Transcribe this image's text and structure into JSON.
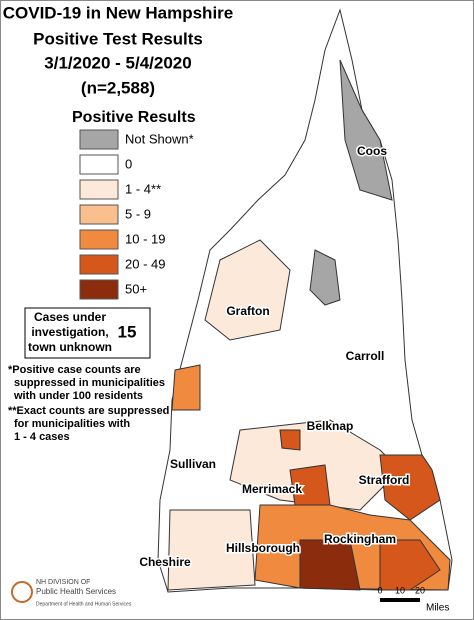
{
  "header": {
    "lines": [
      "COVID-19 in New Hampshire",
      "Positive Test Results",
      "3/1/2020 - 5/4/2020",
      "(n=2,588)"
    ]
  },
  "legend": {
    "title": "Positive Results",
    "items": [
      {
        "label": "Not Shown*",
        "color": "#a6a6a6"
      },
      {
        "label": "0",
        "color": "#ffffff"
      },
      {
        "label": "1 - 4**",
        "color": "#fde9d9"
      },
      {
        "label": "5 - 9",
        "color": "#f9c08e"
      },
      {
        "label": "10 - 19",
        "color": "#f08a3f"
      },
      {
        "label": "20 - 49",
        "color": "#d6571b"
      },
      {
        "label": "50+",
        "color": "#8b2c0c"
      }
    ]
  },
  "unknown_box": {
    "lines": [
      "Cases under",
      "investigation,",
      "town unknown"
    ],
    "count": "15"
  },
  "notes": [
    [
      "*Positive case counts are",
      "suppressed in municipalities",
      "with under 100 residents"
    ],
    [
      "**Exact counts are suppressed",
      "for municipalities with",
      "1 - 4 cases"
    ]
  ],
  "counties": [
    "Coos",
    "Grafton",
    "Carroll",
    "Belknap",
    "Sullivan",
    "Merrimack",
    "Strafford",
    "Cheshire",
    "Hillsborough",
    "Rockingham"
  ],
  "scale": {
    "labels": [
      "0",
      "10",
      "20"
    ],
    "unit": "Miles"
  },
  "logo": {
    "lines": [
      "NH DIVISION OF",
      "Public Health Services",
      "Department of Health and Human Services"
    ]
  }
}
